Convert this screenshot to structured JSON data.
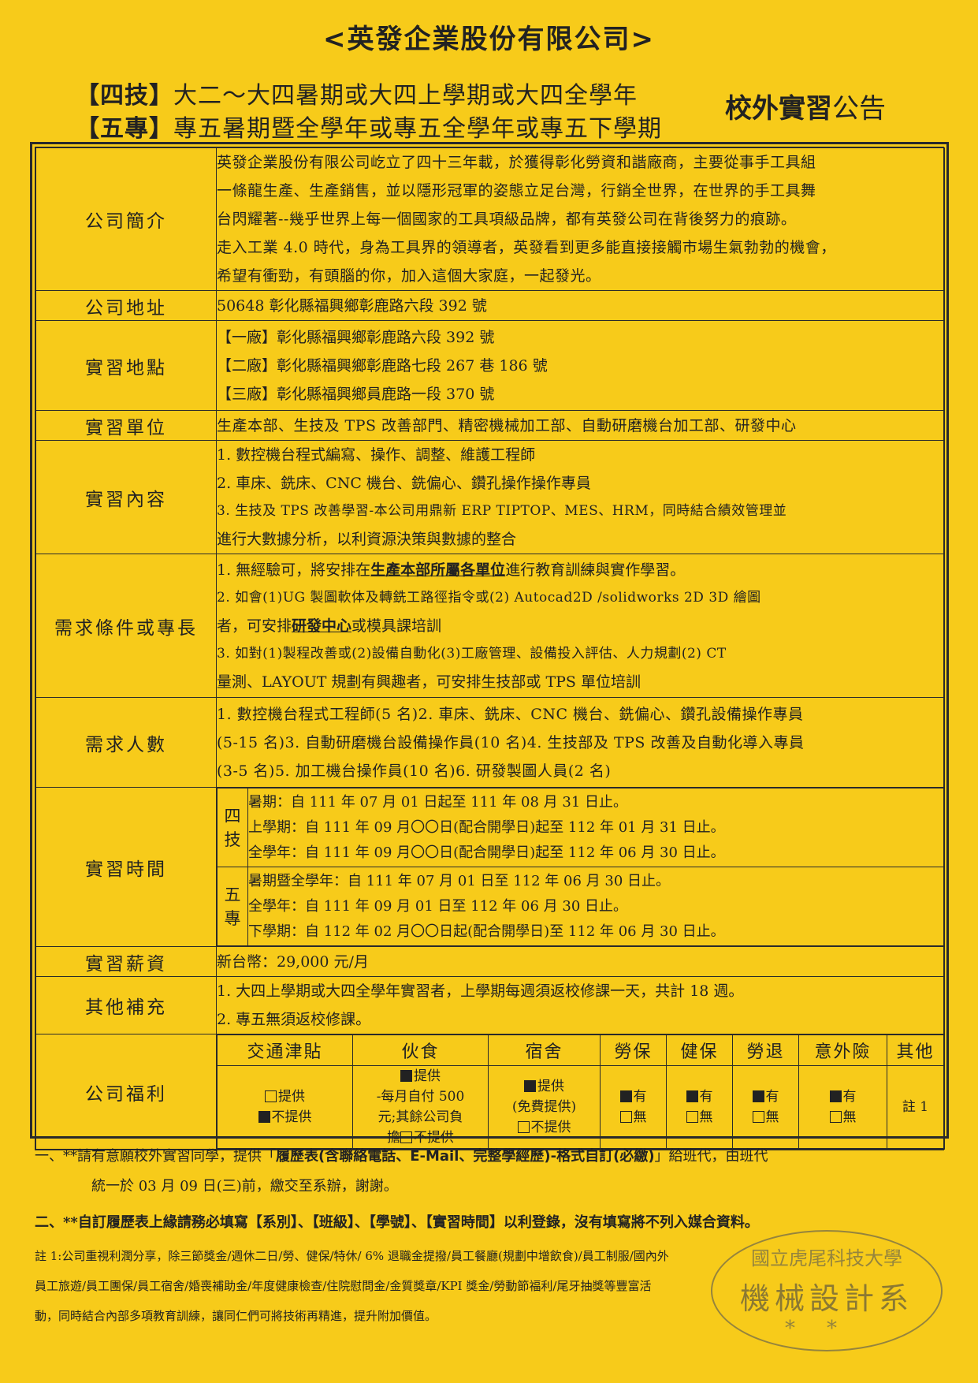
{
  "title": "<英發企業股份有限公司>",
  "header": {
    "line1_tag": "【四技】",
    "line1_text": "大二～大四暑期或大四上學期或大四全學年",
    "line2_tag": "【五專】",
    "line2_text": "專五暑期暨全學年或專五全學年或專五下學期",
    "notice_bold": "校外實習",
    "notice_tail": "公告"
  },
  "rows": {
    "intro": {
      "label": "公司簡介",
      "lines": [
        "英發企業股份有限公司屹立了四十三年載，於獲得彰化勞資和諧廠商，主要從事手工具組",
        "一條龍生產、生產銷售，並以隱形冠軍的姿態立足台灣，行銷全世界，在世界的手工具舞",
        "台閃耀著--幾乎世界上每一個國家的工具項級品牌，都有英發公司在背後努力的痕跡。",
        "走入工業 4.0 時代，身為工具界的領導者，英發看到更多能直接接觸市場生氣勃勃的機會，",
        "希望有衝勁，有頭腦的你，加入這個大家庭，一起發光。"
      ]
    },
    "address": {
      "label": "公司地址",
      "value": "50648 彰化縣福興鄉彰鹿路六段 392 號"
    },
    "location": {
      "label": "實習地點",
      "lines": [
        "【一廠】彰化縣福興鄉彰鹿路六段 392 號",
        "【二廠】彰化縣福興鄉彰鹿路七段 267 巷 186 號",
        "【三廠】彰化縣福興鄉員鹿路一段 370 號"
      ]
    },
    "unit": {
      "label": "實習單位",
      "value": "生產本部、生技及 TPS 改善部門、精密機械加工部、自動研磨機台加工部、研發中心"
    },
    "content": {
      "label": "實習內容",
      "lines": [
        "1. 數控機台程式編寫、操作、調整、維護工程師",
        "2. 車床、銑床、CNC 機台、銑偏心、鑽孔操作操作專員",
        "3. 生技及 TPS 改善學習-本公司用鼎新 ERP TIPTOP、MES、HRM，同時結合績效管理並",
        "進行大數據分析，以利資源決策與數據的整合"
      ]
    },
    "requirement": {
      "label": "需求條件或專長",
      "l1_pre": "1. 無經驗可，將安排在",
      "l1_em": "生產本部所屬各單位",
      "l1_post": "進行教育訓練與實作學習。",
      "l2": "2. 如會(1)UG 製圖軟体及轉銑工路徑指令或(2) Autocad2D /solidworks 2D 3D 繪圖",
      "l3_pre": "者，可安排",
      "l3_em": "研發中心",
      "l3_post": "或模具課培訓",
      "l4": "3. 如對(1)製程改善或(2)設備自動化(3)工廠管理、設備投入評估、人力規劃(2) CT",
      "l5": "量測、LAYOUT 規劃有興趣者，可安排生技部或 TPS 單位培訓"
    },
    "headcount": {
      "label": "需求人數",
      "lines": [
        "1. 數控機台程式工程師(5 名)2. 車床、銑床、CNC 機台、銑偏心、鑽孔設備操作專員",
        "(5-15 名)3. 自動研磨機台設備操作員(10 名)4. 生技部及 TPS 改善及自動化導入專員",
        "(3-5 名)5. 加工機台操作員(10 名)6. 研發製圖人員(2 名)"
      ]
    },
    "period": {
      "label": "實習時間",
      "four_year_tag": "四技",
      "four_year": [
        "暑期：自 111 年 07 月 01 日起至 111 年 08 月 31 日止。",
        "上學期：自 111 年 09 月〇〇日(配合開學日)起至 112 年 01 月 31 日止。",
        "全學年：自 111 年 09 月〇〇日(配合開學日)起至 112 年 06 月 30 日止。"
      ],
      "five_year_tag": "五專",
      "five_year": [
        "暑期暨全學年：自 111 年 07 月 01 日至 112 年 06 月 30 日止。",
        "全學年：自 111 年 09 月 01 日至 112 年 06 月 30 日止。",
        "下學期：自 112 年 02 月〇〇日起(配合開學日)至 112 年 06 月 30 日止。"
      ]
    },
    "salary": {
      "label": "實習薪資",
      "value": "新台幣：29,000 元/月"
    },
    "other": {
      "label": "其他補充",
      "lines": [
        "1. 大四上學期或大四全學年實習者，上學期每週須返校修課一天，共計 18 週。",
        "2. 專五無須返校修課。"
      ]
    },
    "benefits": {
      "label": "公司福利",
      "headers": [
        "交通津貼",
        "伙食",
        "宿舍",
        "勞保",
        "健保",
        "勞退",
        "意外險",
        "其他"
      ],
      "transport": {
        "opt1": "提供",
        "opt1_checked": false,
        "opt2": "不提供",
        "opt2_checked": true
      },
      "meals": {
        "opt1": "提供",
        "detail1": "-每月自付 500",
        "detail2": "元;其餘公司負",
        "detail3_pre": "擔",
        "opt2": "不提供"
      },
      "dorm": {
        "opt1": "提供",
        "detail": "(免費提供)",
        "opt2": "不提供"
      },
      "labor_ins": {
        "yes": "有",
        "no": "無"
      },
      "health_ins": {
        "yes": "有",
        "no": "無"
      },
      "pension": {
        "yes": "有",
        "no": "無"
      },
      "accident": {
        "yes": "有",
        "no": "無"
      },
      "others": "註 1"
    }
  },
  "footer": {
    "n1a": "一、**請有意願校外實習同學，提供「",
    "n1b": "履歷表(含聯絡電話、E-Mail、完整學經歷)-格式自訂(必繳)",
    "n1c": "」給班代，由班代",
    "n1d": "統一於 03 月 09 日(三)前，繳交至系辦，謝謝。",
    "n2": "二、**自訂履歷表上緣請務必填寫【系別】、【班級】、【學號】、【實習時間】以利登錄，沒有填寫將不列入媒合資料。",
    "note1": "註 1:公司重視利潤分享，除三節獎金/週休二日/勞、健保/特休/ 6% 退職金提撥/員工餐廳(規劃中增飲食)/員工制服/國內外",
    "note2": "員工旅遊/員工團保/員工宿舍/婚喪補助金/年度健康檢查/住院慰問金/金質獎章/KPI 獎金/勞動節福利/尾牙抽獎等豐富活",
    "note3": "動，同時結合內部多項教育訓練，讓同仁們可將技術再精進，提升附加價值。"
  },
  "stamp": {
    "top": "國立虎尾科技大學",
    "main": "機械設計系",
    "stars": "**"
  }
}
